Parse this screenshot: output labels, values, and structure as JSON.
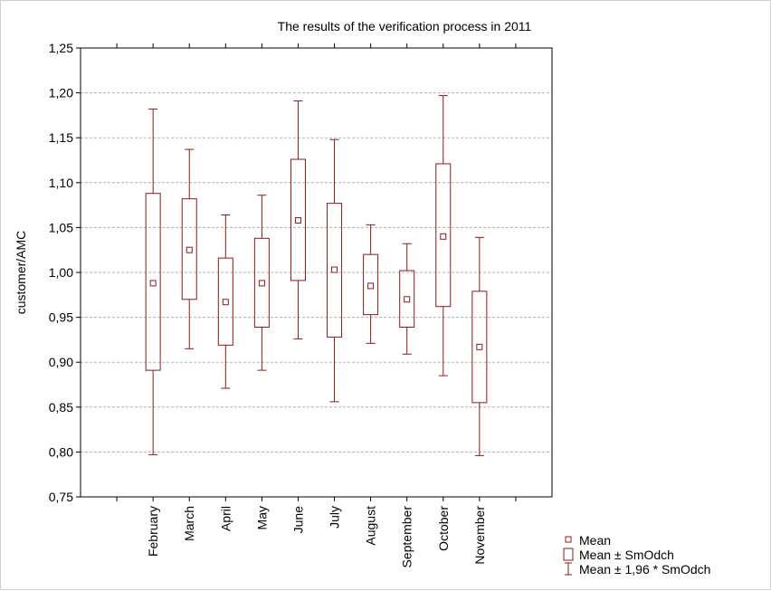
{
  "chart_data": {
    "type": "boxplot",
    "title": "The results of the verification process in 2011",
    "xlabel": "",
    "ylabel": "customer/AMC",
    "ylim": [
      0.75,
      1.25
    ],
    "yticks": [
      "0,75",
      "0,80",
      "0,85",
      "0,90",
      "0,95",
      "1,00",
      "1,05",
      "1,10",
      "1,15",
      "1,20",
      "1,25"
    ],
    "grid": true,
    "legend_position": "bottom-right",
    "colors": {
      "series": "#8b1a1a",
      "grid": "#b0b0b0"
    },
    "categories": [
      "February",
      "March",
      "April",
      "May",
      "June",
      "July",
      "August",
      "September",
      "October",
      "November"
    ],
    "series": [
      {
        "category": "February",
        "mean": 0.988,
        "box_low": 0.891,
        "box_high": 1.088,
        "whisker_low": 0.797,
        "whisker_high": 1.182
      },
      {
        "category": "March",
        "mean": 1.025,
        "box_low": 0.97,
        "box_high": 1.082,
        "whisker_low": 0.915,
        "whisker_high": 1.137
      },
      {
        "category": "April",
        "mean": 0.967,
        "box_low": 0.919,
        "box_high": 1.016,
        "whisker_low": 0.871,
        "whisker_high": 1.064
      },
      {
        "category": "May",
        "mean": 0.988,
        "box_low": 0.939,
        "box_high": 1.038,
        "whisker_low": 0.891,
        "whisker_high": 1.086
      },
      {
        "category": "June",
        "mean": 1.058,
        "box_low": 0.991,
        "box_high": 1.126,
        "whisker_low": 0.926,
        "whisker_high": 1.191
      },
      {
        "category": "July",
        "mean": 1.003,
        "box_low": 0.928,
        "box_high": 1.077,
        "whisker_low": 0.856,
        "whisker_high": 1.148
      },
      {
        "category": "August",
        "mean": 0.985,
        "box_low": 0.953,
        "box_high": 1.02,
        "whisker_low": 0.921,
        "whisker_high": 1.053
      },
      {
        "category": "September",
        "mean": 0.97,
        "box_low": 0.939,
        "box_high": 1.002,
        "whisker_low": 0.909,
        "whisker_high": 1.032
      },
      {
        "category": "October",
        "mean": 1.04,
        "box_low": 0.962,
        "box_high": 1.121,
        "whisker_low": 0.885,
        "whisker_high": 1.197
      },
      {
        "category": "November",
        "mean": 0.917,
        "box_low": 0.855,
        "box_high": 0.979,
        "whisker_low": 0.796,
        "whisker_high": 1.039
      }
    ],
    "legend": [
      {
        "symbol": "mean-square",
        "label": "Mean"
      },
      {
        "symbol": "box",
        "label": "Mean ± SmOdch"
      },
      {
        "symbol": "whisker",
        "label": "Mean ± 1,96 * SmOdch"
      }
    ]
  }
}
